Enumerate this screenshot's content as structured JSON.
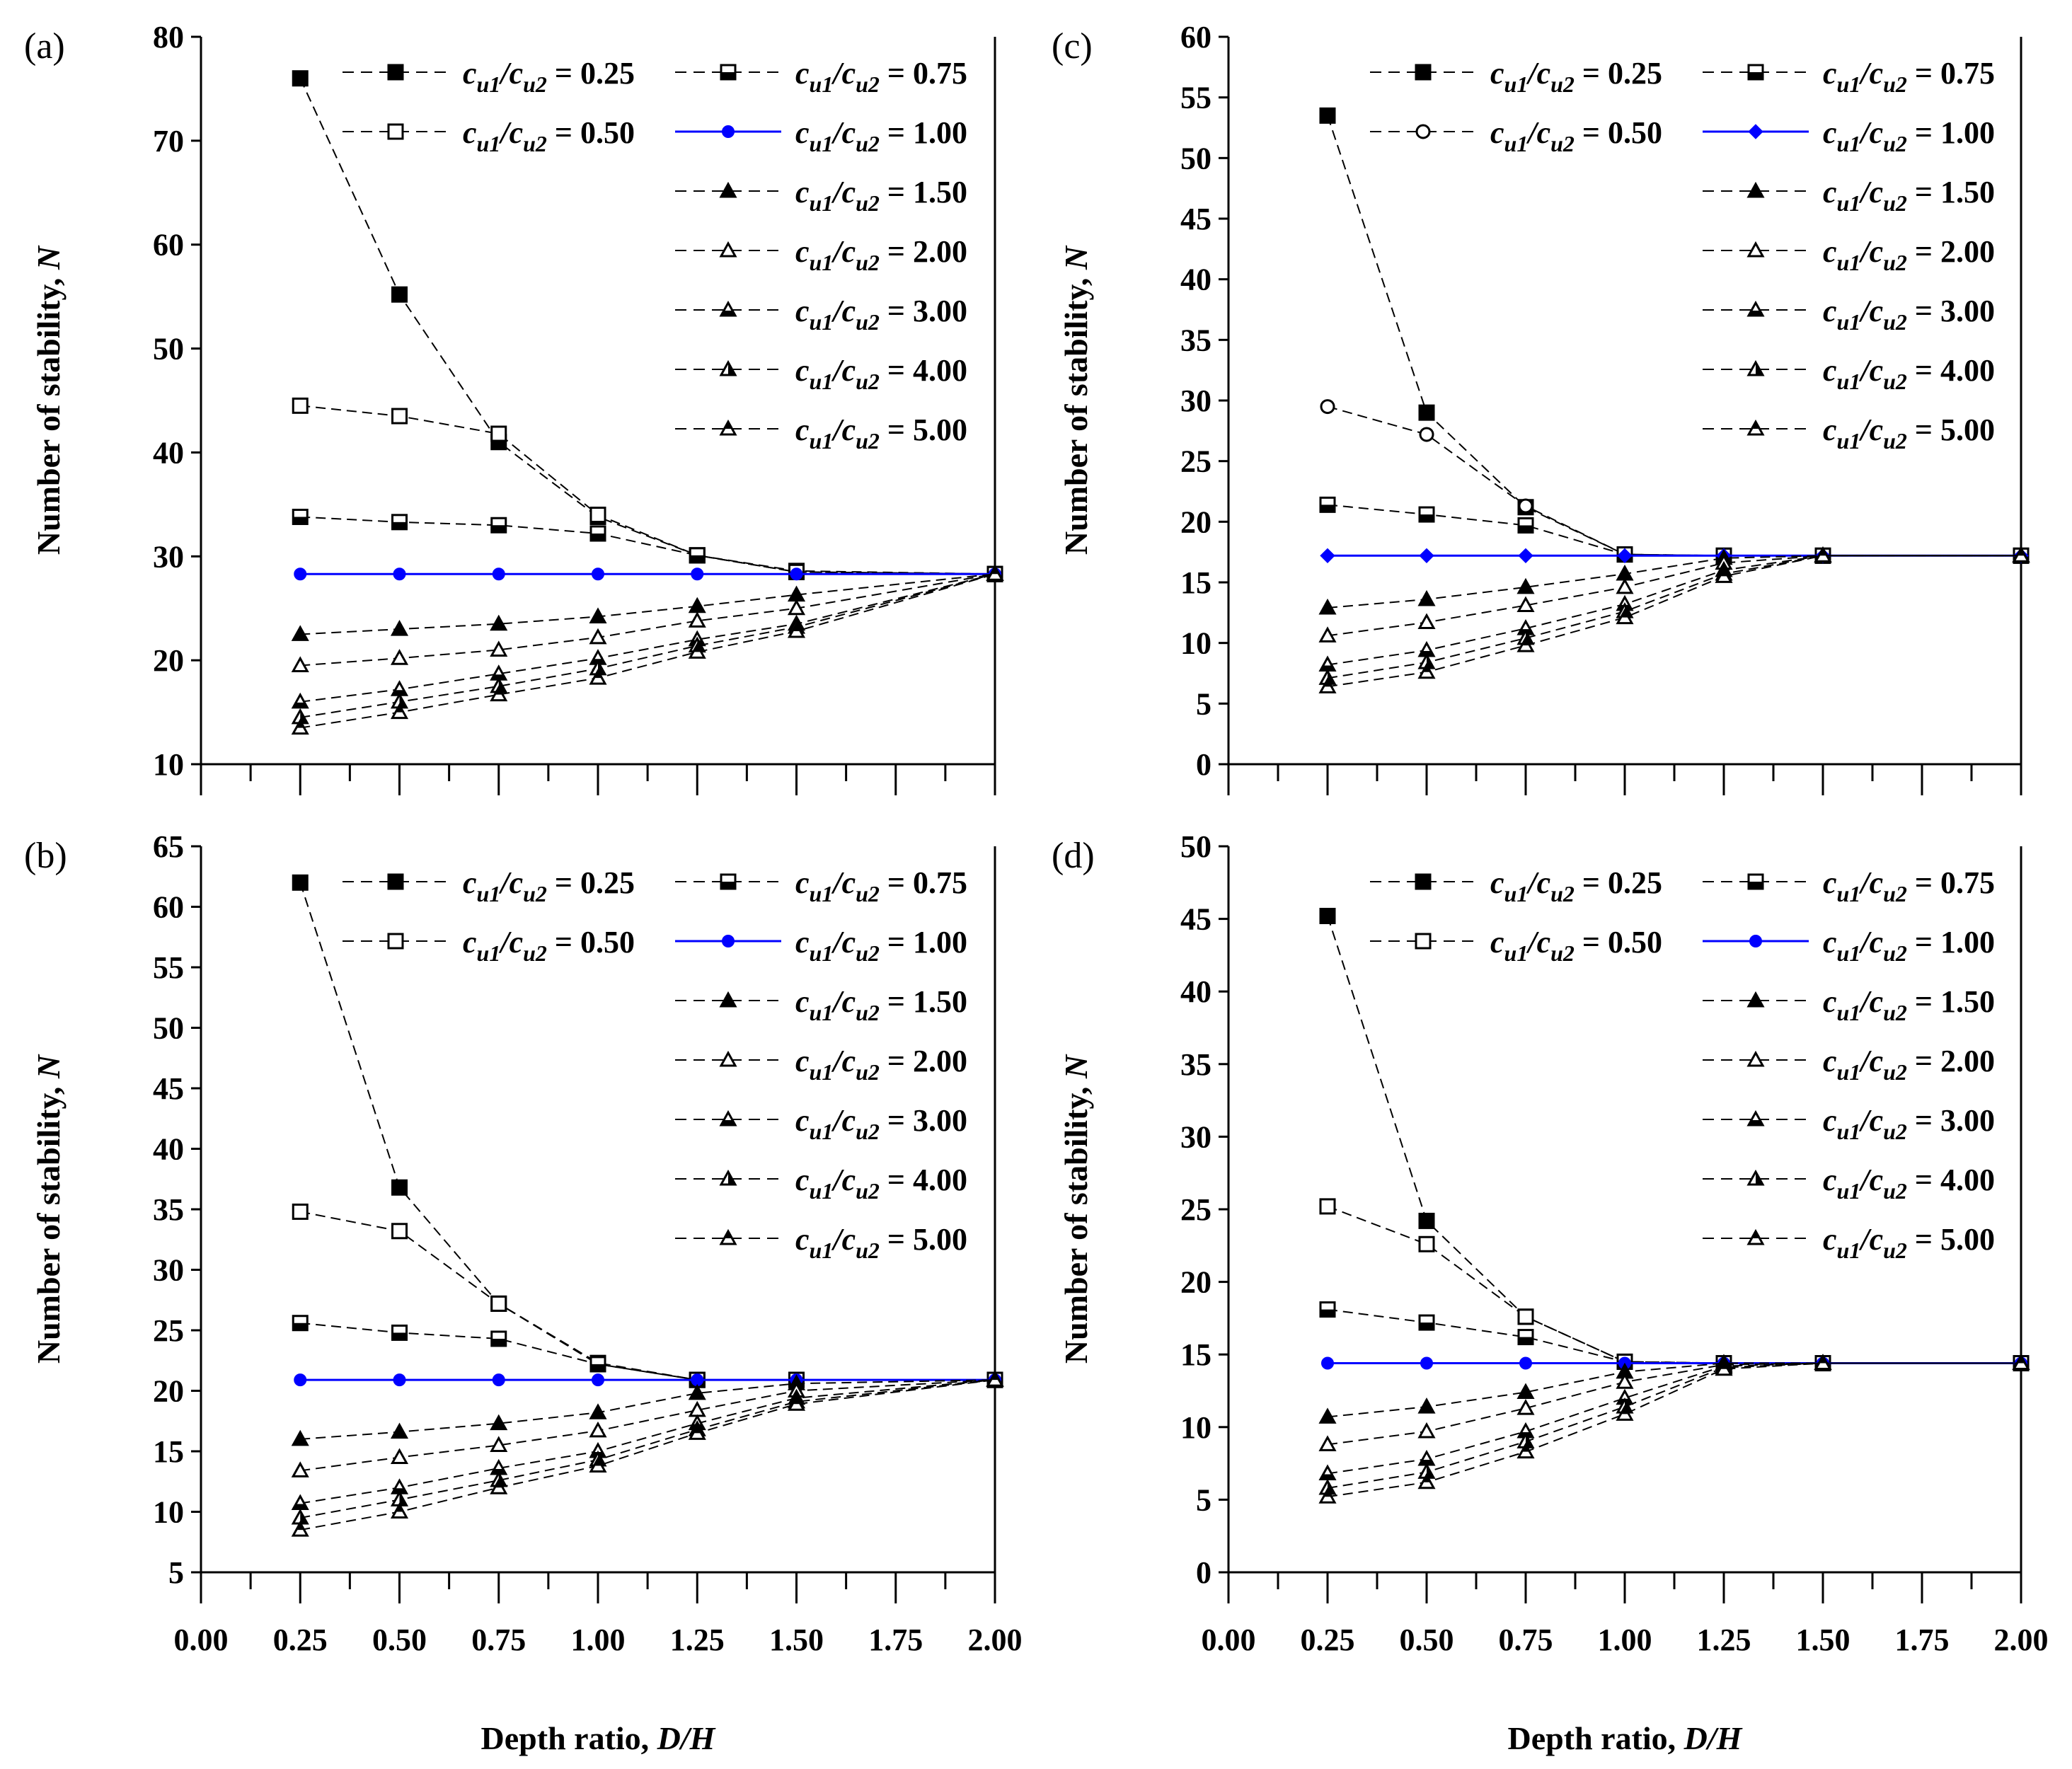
{
  "figure": {
    "xlabel_prefix": "Depth ratio, ",
    "xlabel_var": "D/H",
    "ylabel_prefix": "Number of stability, ",
    "ylabel_var": "N",
    "legend_label_prefix": "c",
    "legend_sub1": "u1",
    "legend_sub2": "u2",
    "blue_color": "#0000ff"
  },
  "chart_data": [
    {
      "panel": "(a)",
      "type": "line",
      "xlabel": "Depth ratio, D/H",
      "ylabel": "Number of stability, N",
      "xlim": [
        0,
        2
      ],
      "ylim": [
        10,
        80
      ],
      "xticks": [
        "0.00",
        "0.25",
        "0.50",
        "0.75",
        "1.00",
        "1.25",
        "1.50",
        "1.75",
        "2.00"
      ],
      "yticks": [
        "10",
        "20",
        "30",
        "40",
        "50",
        "60",
        "70",
        "80"
      ],
      "x": [
        0.25,
        0.5,
        0.75,
        1.0,
        1.25,
        1.5,
        2.0
      ],
      "series": [
        {
          "name": "cu1/cu2 = 0.25",
          "ratio": "0.25",
          "marker": "square-filled",
          "values": [
            76.0,
            55.2,
            41.0,
            33.8,
            30.1,
            28.5,
            28.3
          ]
        },
        {
          "name": "cu1/cu2 = 0.50",
          "ratio": "0.50",
          "marker": "square-open",
          "values": [
            44.5,
            43.5,
            41.8,
            34.0,
            30.1,
            28.6,
            28.3
          ]
        },
        {
          "name": "cu1/cu2 = 0.75",
          "ratio": "0.75",
          "marker": "square-half",
          "values": [
            33.8,
            33.3,
            33.0,
            32.2,
            30.1,
            28.5,
            28.3
          ]
        },
        {
          "name": "cu1/cu2 = 1.00",
          "ratio": "1.00",
          "marker": "circle-blue",
          "values": [
            28.3,
            28.3,
            28.3,
            28.3,
            28.3,
            28.3,
            28.3
          ]
        },
        {
          "name": "cu1/cu2 = 1.50",
          "ratio": "1.50",
          "marker": "triangle-filled",
          "values": [
            22.5,
            23.0,
            23.5,
            24.2,
            25.2,
            26.3,
            28.3
          ]
        },
        {
          "name": "cu1/cu2 = 2.00",
          "ratio": "2.00",
          "marker": "triangle-open",
          "values": [
            19.5,
            20.2,
            21.0,
            22.2,
            23.8,
            25.0,
            28.3
          ]
        },
        {
          "name": "cu1/cu2 = 3.00",
          "ratio": "3.00",
          "marker": "triangle-half",
          "values": [
            16.0,
            17.2,
            18.7,
            20.2,
            22.0,
            23.5,
            28.3
          ]
        },
        {
          "name": "cu1/cu2 = 4.00",
          "ratio": "4.00",
          "marker": "triangle-half2",
          "values": [
            14.5,
            16.0,
            17.5,
            19.2,
            21.4,
            23.2,
            28.3
          ]
        },
        {
          "name": "cu1/cu2 = 5.00",
          "ratio": "5.00",
          "marker": "triangle-half3",
          "values": [
            13.5,
            15.0,
            16.7,
            18.3,
            20.8,
            22.8,
            28.3
          ]
        }
      ]
    },
    {
      "panel": "(b)",
      "type": "line",
      "xlabel": "Depth ratio, D/H",
      "ylabel": "Number of stability, N",
      "xlim": [
        0,
        2
      ],
      "ylim": [
        5,
        65
      ],
      "xticks": [
        "0.00",
        "0.25",
        "0.50",
        "0.75",
        "1.00",
        "1.25",
        "1.50",
        "1.75",
        "2.00"
      ],
      "yticks": [
        "5",
        "10",
        "15",
        "20",
        "25",
        "30",
        "35",
        "40",
        "45",
        "50",
        "55",
        "60",
        "65"
      ],
      "x": [
        0.25,
        0.5,
        0.75,
        1.0,
        1.25,
        1.5,
        2.0
      ],
      "series": [
        {
          "name": "cu1/cu2 = 0.25",
          "ratio": "0.25",
          "marker": "square-filled",
          "values": [
            62.0,
            36.8,
            27.2,
            22.2,
            20.9,
            20.9,
            20.9
          ]
        },
        {
          "name": "cu1/cu2 = 0.50",
          "ratio": "0.50",
          "marker": "square-open",
          "values": [
            34.8,
            33.2,
            27.2,
            22.3,
            20.9,
            20.9,
            20.9
          ]
        },
        {
          "name": "cu1/cu2 = 0.75",
          "ratio": "0.75",
          "marker": "square-half",
          "values": [
            25.6,
            24.8,
            24.3,
            22.2,
            20.9,
            20.9,
            20.9
          ]
        },
        {
          "name": "cu1/cu2 = 1.00",
          "ratio": "1.00",
          "marker": "circle-blue",
          "values": [
            20.9,
            20.9,
            20.9,
            20.9,
            20.9,
            20.9,
            20.9
          ]
        },
        {
          "name": "cu1/cu2 = 1.50",
          "ratio": "1.50",
          "marker": "triangle-filled",
          "values": [
            16.0,
            16.6,
            17.3,
            18.2,
            19.8,
            20.6,
            20.9
          ]
        },
        {
          "name": "cu1/cu2 = 2.00",
          "ratio": "2.00",
          "marker": "triangle-open",
          "values": [
            13.4,
            14.5,
            15.5,
            16.7,
            18.4,
            20.0,
            20.9
          ]
        },
        {
          "name": "cu1/cu2 = 3.00",
          "ratio": "3.00",
          "marker": "triangle-half",
          "values": [
            10.7,
            12.0,
            13.6,
            15.0,
            17.3,
            19.4,
            20.9
          ]
        },
        {
          "name": "cu1/cu2 = 4.00",
          "ratio": "4.00",
          "marker": "triangle-half2",
          "values": [
            9.5,
            11.0,
            12.6,
            14.3,
            16.8,
            19.1,
            20.9
          ]
        },
        {
          "name": "cu1/cu2 = 5.00",
          "ratio": "5.00",
          "marker": "triangle-half3",
          "values": [
            8.5,
            10.0,
            12.0,
            13.8,
            16.5,
            18.9,
            20.9
          ]
        }
      ]
    },
    {
      "panel": "(c)",
      "type": "line",
      "xlabel": "Depth ratio, D/H",
      "ylabel": "Number of stability, N",
      "xlim": [
        0,
        2
      ],
      "ylim": [
        0,
        60
      ],
      "xticks": [
        "0.00",
        "0.25",
        "0.50",
        "0.75",
        "1.00",
        "1.25",
        "1.50",
        "1.75",
        "2.00"
      ],
      "yticks": [
        "0",
        "5",
        "10",
        "15",
        "20",
        "25",
        "30",
        "35",
        "40",
        "45",
        "50",
        "55",
        "60"
      ],
      "x": [
        0.25,
        0.5,
        0.75,
        1.0,
        1.25,
        1.5,
        2.0
      ],
      "series": [
        {
          "name": "cu1/cu2 = 0.25",
          "ratio": "0.25",
          "marker": "square-filled",
          "values": [
            53.5,
            29.0,
            21.2,
            17.3,
            17.2,
            17.2,
            17.2
          ]
        },
        {
          "name": "cu1/cu2 = 0.50",
          "ratio": "0.50",
          "marker": "circle-open",
          "values": [
            29.5,
            27.2,
            21.3,
            17.3,
            17.2,
            17.2,
            17.2
          ]
        },
        {
          "name": "cu1/cu2 = 0.75",
          "ratio": "0.75",
          "marker": "square-half",
          "values": [
            21.4,
            20.6,
            19.7,
            17.3,
            17.2,
            17.2,
            17.2
          ]
        },
        {
          "name": "cu1/cu2 = 1.00",
          "ratio": "1.00",
          "marker": "diamond-blue",
          "values": [
            17.2,
            17.2,
            17.2,
            17.2,
            17.2,
            17.2,
            17.2
          ]
        },
        {
          "name": "cu1/cu2 = 1.50",
          "ratio": "1.50",
          "marker": "triangle-filled",
          "values": [
            12.9,
            13.6,
            14.6,
            15.7,
            17.0,
            17.2,
            17.2
          ]
        },
        {
          "name": "cu1/cu2 = 2.00",
          "ratio": "2.00",
          "marker": "triangle-open",
          "values": [
            10.6,
            11.7,
            13.1,
            14.6,
            16.6,
            17.2,
            17.2
          ]
        },
        {
          "name": "cu1/cu2 = 3.00",
          "ratio": "3.00",
          "marker": "triangle-half",
          "values": [
            8.2,
            9.4,
            11.2,
            13.2,
            16.0,
            17.2,
            17.2
          ]
        },
        {
          "name": "cu1/cu2 = 4.00",
          "ratio": "4.00",
          "marker": "triangle-half2",
          "values": [
            7.1,
            8.4,
            10.4,
            12.6,
            15.7,
            17.2,
            17.2
          ]
        },
        {
          "name": "cu1/cu2 = 5.00",
          "ratio": "5.00",
          "marker": "triangle-half3",
          "values": [
            6.4,
            7.6,
            9.8,
            12.1,
            15.5,
            17.2,
            17.2
          ]
        }
      ]
    },
    {
      "panel": "(d)",
      "type": "line",
      "xlabel": "Depth ratio, D/H",
      "ylabel": "Number of stability, N",
      "xlim": [
        0,
        2
      ],
      "ylim": [
        0,
        50
      ],
      "xticks": [
        "0.00",
        "0.25",
        "0.50",
        "0.75",
        "1.00",
        "1.25",
        "1.50",
        "1.75",
        "2.00"
      ],
      "yticks": [
        "0",
        "5",
        "10",
        "15",
        "20",
        "25",
        "30",
        "35",
        "40",
        "45",
        "50"
      ],
      "x": [
        0.25,
        0.5,
        0.75,
        1.0,
        1.25,
        1.5,
        2.0
      ],
      "series": [
        {
          "name": "cu1/cu2 = 0.25",
          "ratio": "0.25",
          "marker": "square-filled",
          "values": [
            45.2,
            24.2,
            17.6,
            14.5,
            14.4,
            14.4,
            14.4
          ]
        },
        {
          "name": "cu1/cu2 = 0.50",
          "ratio": "0.50",
          "marker": "square-open",
          "values": [
            25.2,
            22.6,
            17.6,
            14.5,
            14.4,
            14.4,
            14.4
          ]
        },
        {
          "name": "cu1/cu2 = 0.75",
          "ratio": "0.75",
          "marker": "square-half",
          "values": [
            18.1,
            17.2,
            16.2,
            14.5,
            14.4,
            14.4,
            14.4
          ]
        },
        {
          "name": "cu1/cu2 = 1.00",
          "ratio": "1.00",
          "marker": "circle-blue",
          "values": [
            14.4,
            14.4,
            14.4,
            14.4,
            14.4,
            14.4,
            14.4
          ]
        },
        {
          "name": "cu1/cu2 = 1.50",
          "ratio": "1.50",
          "marker": "triangle-filled",
          "values": [
            10.7,
            11.4,
            12.4,
            13.8,
            14.4,
            14.4,
            14.4
          ]
        },
        {
          "name": "cu1/cu2 = 2.00",
          "ratio": "2.00",
          "marker": "triangle-open",
          "values": [
            8.8,
            9.7,
            11.3,
            13.1,
            14.3,
            14.4,
            14.4
          ]
        },
        {
          "name": "cu1/cu2 = 3.00",
          "ratio": "3.00",
          "marker": "triangle-half",
          "values": [
            6.8,
            7.8,
            9.7,
            12.0,
            14.2,
            14.4,
            14.4
          ]
        },
        {
          "name": "cu1/cu2 = 4.00",
          "ratio": "4.00",
          "marker": "triangle-half2",
          "values": [
            5.8,
            6.9,
            9.0,
            11.4,
            14.1,
            14.4,
            14.4
          ]
        },
        {
          "name": "cu1/cu2 = 5.00",
          "ratio": "5.00",
          "marker": "triangle-half3",
          "values": [
            5.2,
            6.2,
            8.3,
            10.9,
            14.0,
            14.4,
            14.4
          ]
        }
      ]
    }
  ]
}
